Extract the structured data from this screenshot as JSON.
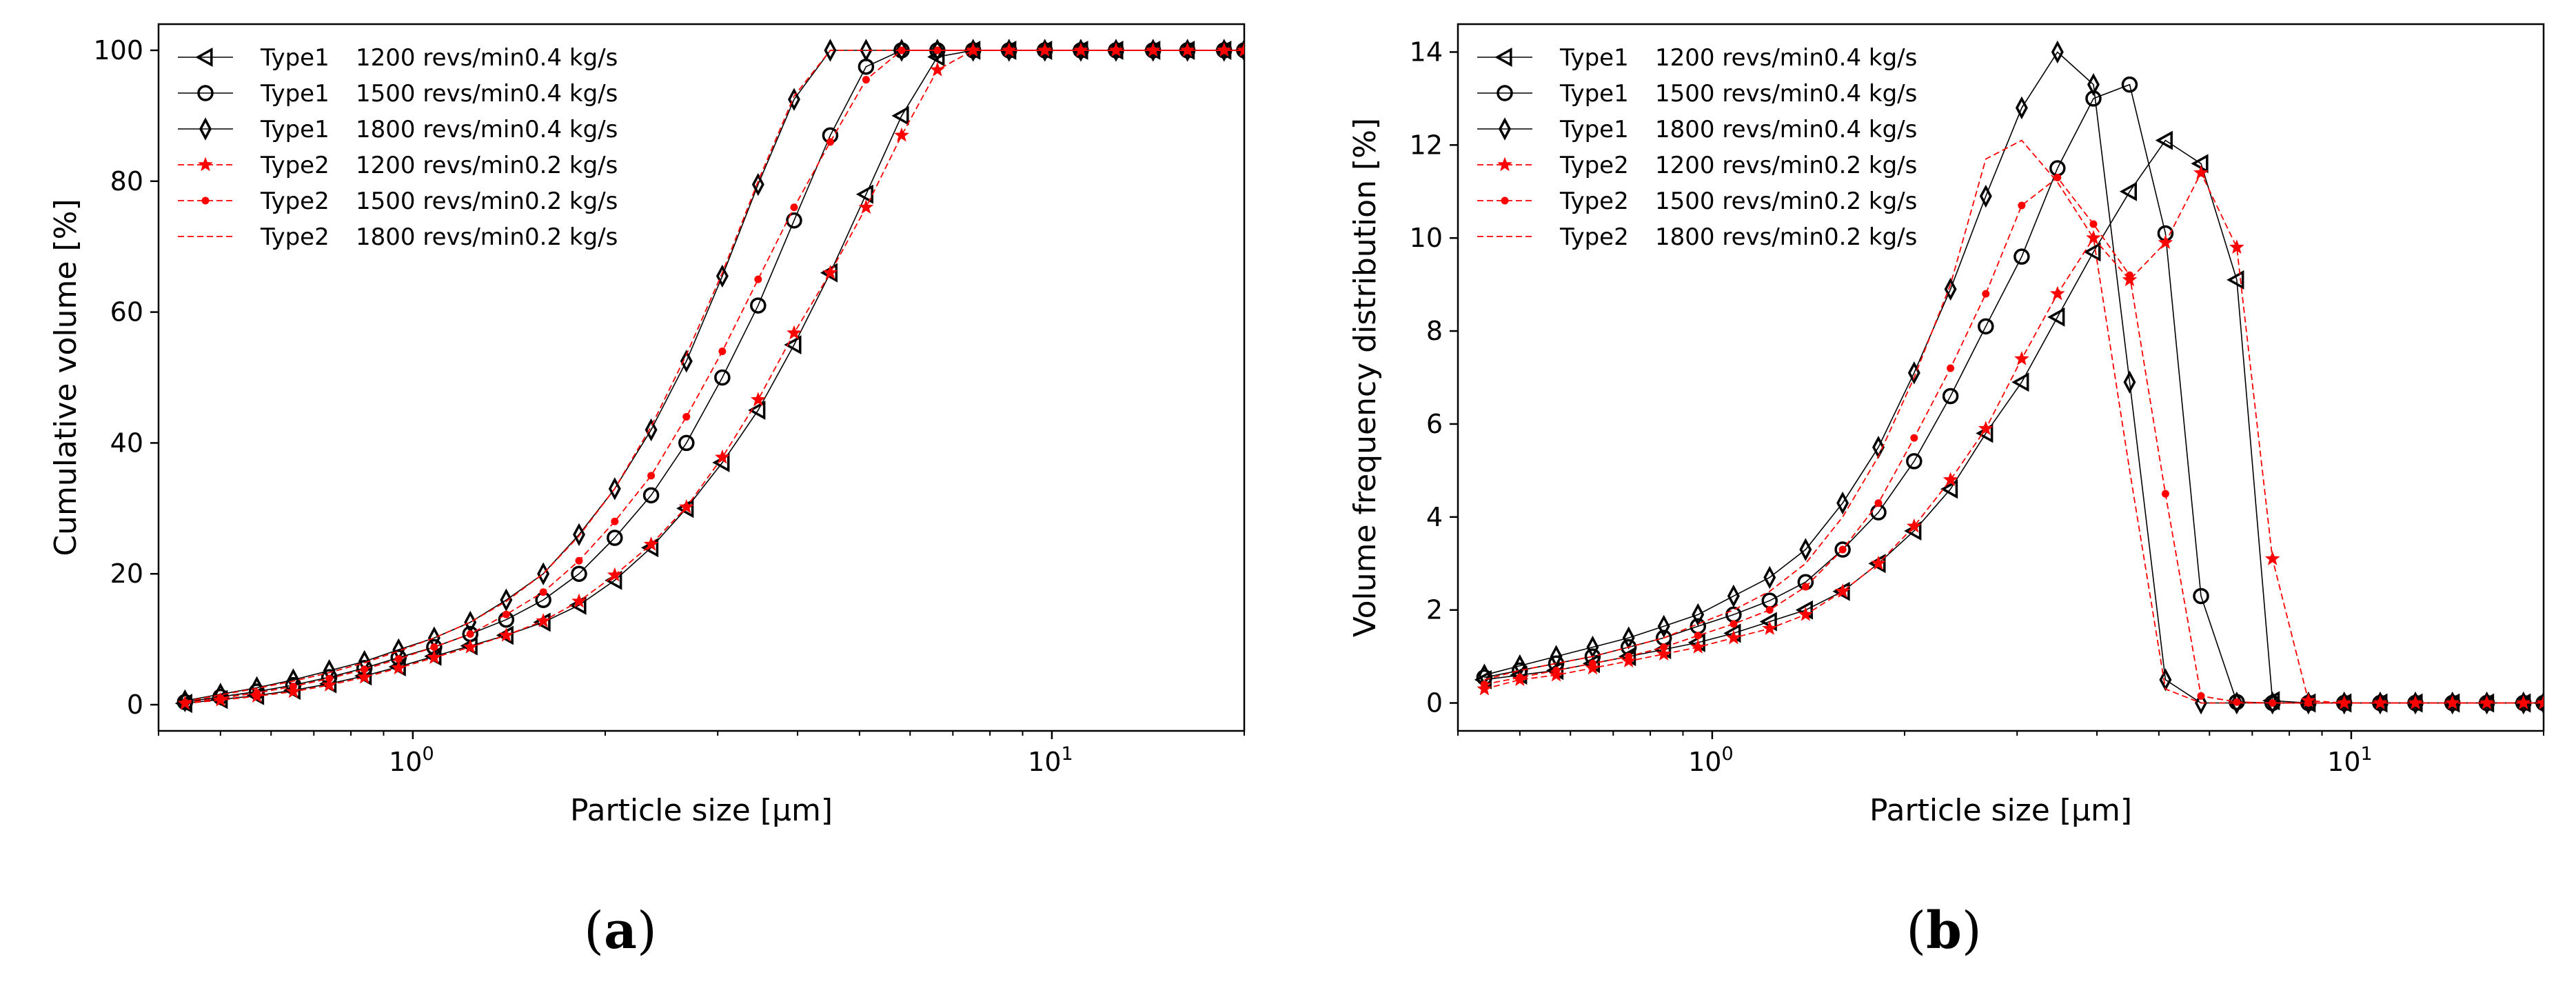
{
  "colors": {
    "type1": "#000000",
    "type2": "#ff0000",
    "frame": "#000000",
    "background": "#ffffff"
  },
  "chart_data": [
    {
      "id": "a",
      "caption_letter": "a",
      "caption_open": "(",
      "caption_close": ")",
      "type": "line",
      "xscale": "log",
      "xlim": [
        0.4,
        20
      ],
      "ylim": [
        -4,
        104
      ],
      "xlabel": "Particle size [μm]",
      "ylabel": "Cumulative volume [%]",
      "yticks": [
        0,
        20,
        40,
        60,
        80,
        100
      ],
      "xticks": [
        {
          "value": 1,
          "base": "10",
          "exp": "0"
        },
        {
          "value": 10,
          "base": "10",
          "exp": "1"
        }
      ],
      "legend_position": "top-left",
      "series": [
        {
          "name": "Type1",
          "speed": "1200 revs/min",
          "rate": "0.4 kg/s",
          "color": "#000000",
          "dash": false,
          "marker": "triangle-left",
          "x": [
            0.44,
            0.5,
            0.57,
            0.65,
            0.74,
            0.84,
            0.95,
            1.08,
            1.23,
            1.4,
            1.6,
            1.82,
            2.07,
            2.36,
            2.68,
            3.05,
            3.47,
            3.95,
            4.5,
            5.12,
            5.82,
            6.62,
            7.53,
            8.57,
            9.75,
            11.1,
            12.6,
            14.4,
            16.3,
            18.6,
            20.0
          ],
          "y": [
            0.2,
            0.8,
            1.4,
            2.2,
            3.2,
            4.4,
            5.8,
            7.4,
            9.0,
            10.6,
            12.6,
            15.2,
            19.0,
            24.0,
            30.0,
            37.0,
            45.0,
            55.0,
            66.0,
            78.0,
            90.0,
            99.0,
            100,
            100,
            100,
            100,
            100,
            100,
            100,
            100,
            100
          ]
        },
        {
          "name": "Type1",
          "speed": "1500 revs/min",
          "rate": "0.4 kg/s",
          "color": "#000000",
          "dash": false,
          "marker": "circle",
          "x": [
            0.44,
            0.5,
            0.57,
            0.65,
            0.74,
            0.84,
            0.95,
            1.08,
            1.23,
            1.4,
            1.6,
            1.82,
            2.07,
            2.36,
            2.68,
            3.05,
            3.47,
            3.95,
            4.5,
            5.12,
            5.82,
            6.62,
            7.53,
            8.57,
            9.75,
            11.1,
            12.6,
            14.4,
            16.3,
            18.6,
            20.0
          ],
          "y": [
            0.4,
            1.2,
            2.0,
            3.0,
            4.2,
            5.6,
            7.2,
            8.8,
            10.8,
            13.0,
            16.0,
            20.0,
            25.5,
            32.0,
            40.0,
            50.0,
            61.0,
            74.0,
            87.0,
            97.5,
            100,
            100,
            100,
            100,
            100,
            100,
            100,
            100,
            100,
            100,
            100
          ]
        },
        {
          "name": "Type1",
          "speed": "1800 revs/min",
          "rate": "0.4 kg/s",
          "color": "#000000",
          "dash": false,
          "marker": "diamond",
          "x": [
            0.44,
            0.5,
            0.57,
            0.65,
            0.74,
            0.84,
            0.95,
            1.08,
            1.23,
            1.4,
            1.6,
            1.82,
            2.07,
            2.36,
            2.68,
            3.05,
            3.47,
            3.95,
            4.5,
            5.12,
            5.82,
            6.62,
            7.53,
            8.57,
            9.75,
            11.1,
            12.6,
            14.4,
            16.3,
            18.6,
            20.0
          ],
          "y": [
            0.6,
            1.6,
            2.6,
            3.8,
            5.2,
            6.6,
            8.4,
            10.2,
            12.6,
            16.0,
            20.0,
            26.0,
            33.0,
            42.0,
            52.5,
            65.5,
            79.5,
            92.5,
            100,
            100,
            100,
            100,
            100,
            100,
            100,
            100,
            100,
            100,
            100,
            100,
            100
          ]
        },
        {
          "name": "Type2",
          "speed": "1200 revs/min",
          "rate": "0.2 kg/s",
          "color": "#ff0000",
          "dash": true,
          "marker": "star",
          "x": [
            0.44,
            0.5,
            0.57,
            0.65,
            0.74,
            0.84,
            0.95,
            1.08,
            1.23,
            1.4,
            1.6,
            1.82,
            2.07,
            2.36,
            2.68,
            3.05,
            3.47,
            3.95,
            4.5,
            5.12,
            5.82,
            6.62,
            7.53,
            8.57,
            9.75,
            11.1,
            12.6,
            14.4,
            16.3,
            18.6,
            20.0
          ],
          "y": [
            0.2,
            0.7,
            1.3,
            2.0,
            3.0,
            4.2,
            5.6,
            7.2,
            8.8,
            10.6,
            12.8,
            15.8,
            19.8,
            24.5,
            30.2,
            37.8,
            46.6,
            56.8,
            66.0,
            76.0,
            87.0,
            97.0,
            100,
            100,
            100,
            100,
            100,
            100,
            100,
            100,
            100
          ]
        },
        {
          "name": "Type2",
          "speed": "1500 revs/min",
          "rate": "0.2 kg/s",
          "color": "#ff0000",
          "dash": true,
          "marker": "dot",
          "x": [
            0.44,
            0.5,
            0.57,
            0.65,
            0.74,
            0.84,
            0.95,
            1.08,
            1.23,
            1.4,
            1.6,
            1.82,
            2.07,
            2.36,
            2.68,
            3.05,
            3.47,
            3.95,
            4.5,
            5.12,
            5.82,
            6.62,
            7.53,
            8.57,
            9.75,
            11.1,
            12.6,
            14.4,
            16.3,
            18.6,
            20.0
          ],
          "y": [
            0.3,
            1.0,
            1.8,
            2.8,
            4.0,
            5.4,
            7.0,
            8.8,
            10.8,
            13.8,
            17.2,
            22.0,
            28.0,
            35.0,
            44.0,
            54.0,
            65.0,
            76.0,
            86.0,
            95.5,
            100,
            100,
            100,
            100,
            100,
            100,
            100,
            100,
            100,
            100,
            100
          ]
        },
        {
          "name": "Type2",
          "speed": "1800 revs/min",
          "rate": "0.2 kg/s",
          "color": "#ff0000",
          "dash": true,
          "marker": "none",
          "x": [
            0.44,
            0.5,
            0.57,
            0.65,
            0.74,
            0.84,
            0.95,
            1.08,
            1.23,
            1.4,
            1.6,
            1.82,
            2.07,
            2.36,
            2.68,
            3.05,
            3.47,
            3.95,
            4.5,
            5.12,
            5.82,
            6.62,
            7.53,
            8.57,
            9.75,
            11.1,
            12.6,
            14.4,
            16.3,
            18.6,
            20.0
          ],
          "y": [
            0.5,
            1.5,
            2.5,
            3.6,
            4.9,
            6.4,
            8.2,
            10.2,
            12.6,
            15.8,
            20.0,
            25.8,
            33.0,
            42.5,
            53.5,
            66.0,
            80.0,
            93.0,
            100,
            100,
            100,
            100,
            100,
            100,
            100,
            100,
            100,
            100,
            100,
            100,
            100
          ]
        }
      ]
    },
    {
      "id": "b",
      "caption_letter": "b",
      "caption_open": "(",
      "caption_close": ")",
      "type": "line",
      "xscale": "log",
      "xlim": [
        0.4,
        20
      ],
      "ylim": [
        -0.6,
        14.6
      ],
      "xlabel": "Particle size [μm]",
      "ylabel": "Volume frequency distribution [%]",
      "yticks": [
        0,
        2,
        4,
        6,
        8,
        10,
        12,
        14
      ],
      "xticks": [
        {
          "value": 1,
          "base": "10",
          "exp": "0"
        },
        {
          "value": 10,
          "base": "10",
          "exp": "1"
        }
      ],
      "legend_position": "top-left",
      "series": [
        {
          "name": "Type1",
          "speed": "1200 revs/min",
          "rate": "0.4 kg/s",
          "color": "#000000",
          "dash": false,
          "marker": "triangle-left",
          "x": [
            0.44,
            0.5,
            0.57,
            0.65,
            0.74,
            0.84,
            0.95,
            1.08,
            1.23,
            1.4,
            1.6,
            1.82,
            2.07,
            2.36,
            2.68,
            3.05,
            3.47,
            3.95,
            4.5,
            5.12,
            5.82,
            6.62,
            7.53,
            8.57,
            9.75,
            11.1,
            12.6,
            14.4,
            16.3,
            18.6,
            20.0
          ],
          "y": [
            0.5,
            0.6,
            0.7,
            0.85,
            1.0,
            1.15,
            1.3,
            1.5,
            1.75,
            2.0,
            2.4,
            3.0,
            3.7,
            4.6,
            5.8,
            6.9,
            8.3,
            9.7,
            11.0,
            12.1,
            11.6,
            9.1,
            0.05,
            0,
            0,
            0,
            0,
            0,
            0,
            0,
            0
          ]
        },
        {
          "name": "Type1",
          "speed": "1500 revs/min",
          "rate": "0.4 kg/s",
          "color": "#000000",
          "dash": false,
          "marker": "circle",
          "x": [
            0.44,
            0.5,
            0.57,
            0.65,
            0.74,
            0.84,
            0.95,
            1.08,
            1.23,
            1.4,
            1.6,
            1.82,
            2.07,
            2.36,
            2.68,
            3.05,
            3.47,
            3.95,
            4.5,
            5.12,
            5.82,
            6.62,
            7.53,
            8.57,
            9.75,
            11.1,
            12.6,
            14.4,
            16.3,
            18.6,
            20.0
          ],
          "y": [
            0.55,
            0.7,
            0.85,
            1.0,
            1.2,
            1.4,
            1.65,
            1.9,
            2.2,
            2.6,
            3.3,
            4.1,
            5.2,
            6.6,
            8.1,
            9.6,
            11.5,
            13.0,
            13.3,
            10.1,
            2.3,
            0.02,
            0,
            0,
            0,
            0,
            0,
            0,
            0,
            0,
            0
          ]
        },
        {
          "name": "Type1",
          "speed": "1800 revs/min",
          "rate": "0.4 kg/s",
          "color": "#000000",
          "dash": false,
          "marker": "diamond",
          "x": [
            0.44,
            0.5,
            0.57,
            0.65,
            0.74,
            0.84,
            0.95,
            1.08,
            1.23,
            1.4,
            1.6,
            1.82,
            2.07,
            2.36,
            2.68,
            3.05,
            3.47,
            3.95,
            4.5,
            5.12,
            5.82,
            6.62,
            7.53,
            8.57,
            9.75,
            11.1,
            12.6,
            14.4,
            16.3,
            18.6,
            20.0
          ],
          "y": [
            0.6,
            0.8,
            1.0,
            1.2,
            1.4,
            1.65,
            1.9,
            2.3,
            2.7,
            3.3,
            4.3,
            5.5,
            7.1,
            8.9,
            10.9,
            12.8,
            14.0,
            13.3,
            6.9,
            0.5,
            0,
            0,
            0,
            0,
            0,
            0,
            0,
            0,
            0,
            0,
            0
          ]
        },
        {
          "name": "Type2",
          "speed": "1200 revs/min",
          "rate": "0.2 kg/s",
          "color": "#ff0000",
          "dash": true,
          "marker": "star",
          "x": [
            0.44,
            0.5,
            0.57,
            0.65,
            0.74,
            0.84,
            0.95,
            1.08,
            1.23,
            1.4,
            1.6,
            1.82,
            2.07,
            2.36,
            2.68,
            3.05,
            3.47,
            3.95,
            4.5,
            5.12,
            5.82,
            6.62,
            7.53,
            8.57,
            9.75,
            11.1,
            12.6,
            14.4,
            16.3,
            18.6,
            20.0
          ],
          "y": [
            0.3,
            0.5,
            0.6,
            0.75,
            0.9,
            1.05,
            1.2,
            1.4,
            1.6,
            1.9,
            2.4,
            3.0,
            3.8,
            4.8,
            5.9,
            7.4,
            8.8,
            10.0,
            9.1,
            9.9,
            11.4,
            9.8,
            3.1,
            0.05,
            0,
            0,
            0,
            0,
            0,
            0,
            0
          ]
        },
        {
          "name": "Type2",
          "speed": "1500 revs/min",
          "rate": "0.2 kg/s",
          "color": "#ff0000",
          "dash": true,
          "marker": "dot",
          "x": [
            0.44,
            0.5,
            0.57,
            0.65,
            0.74,
            0.84,
            0.95,
            1.08,
            1.23,
            1.4,
            1.6,
            1.82,
            2.07,
            2.36,
            2.68,
            3.05,
            3.47,
            3.95,
            4.5,
            5.12,
            5.82,
            6.62,
            7.53,
            8.57,
            9.75,
            11.1,
            12.6,
            14.4,
            16.3,
            18.6,
            20.0
          ],
          "y": [
            0.4,
            0.55,
            0.7,
            0.85,
            1.0,
            1.2,
            1.45,
            1.7,
            2.0,
            2.5,
            3.3,
            4.3,
            5.7,
            7.2,
            8.8,
            10.7,
            11.3,
            10.3,
            9.2,
            4.5,
            0.15,
            0.02,
            0,
            0,
            0,
            0,
            0,
            0,
            0,
            0,
            0
          ]
        },
        {
          "name": "Type2",
          "speed": "1800 revs/min",
          "rate": "0.2 kg/s",
          "color": "#ff0000",
          "dash": true,
          "marker": "none",
          "x": [
            0.44,
            0.5,
            0.57,
            0.65,
            0.74,
            0.84,
            0.95,
            1.08,
            1.23,
            1.4,
            1.6,
            1.82,
            2.07,
            2.36,
            2.68,
            3.05,
            3.47,
            3.95,
            4.5,
            5.12,
            5.82,
            6.62,
            7.53,
            8.57,
            9.75,
            11.1,
            12.6,
            14.4,
            16.3,
            18.6,
            20.0
          ],
          "y": [
            0.5,
            0.7,
            0.85,
            1.0,
            1.2,
            1.4,
            1.7,
            2.0,
            2.4,
            3.0,
            4.0,
            5.3,
            7.0,
            9.0,
            11.7,
            12.1,
            11.2,
            10.0,
            5.0,
            0.3,
            0,
            0,
            0,
            0,
            0,
            0,
            0,
            0,
            0,
            0,
            0
          ]
        }
      ]
    }
  ]
}
